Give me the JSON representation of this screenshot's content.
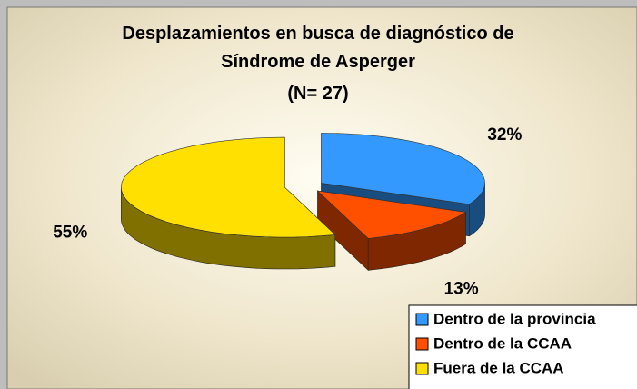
{
  "chart_data": {
    "type": "pie3d",
    "title": "Desplazamientos en busca de diagnóstico de Síndrome de Asperger",
    "subtitle": "(N= 27)",
    "categories": [
      "Dentro de la provincia",
      "Dentro de la CCAA",
      "Fuera de la CCAA"
    ],
    "values": [
      32,
      13,
      55
    ],
    "value_labels": [
      "32%",
      "13%",
      "55%"
    ],
    "colors": [
      "#3399ff",
      "#ff5000",
      "#ffe000"
    ],
    "legend": "bottom-right"
  }
}
